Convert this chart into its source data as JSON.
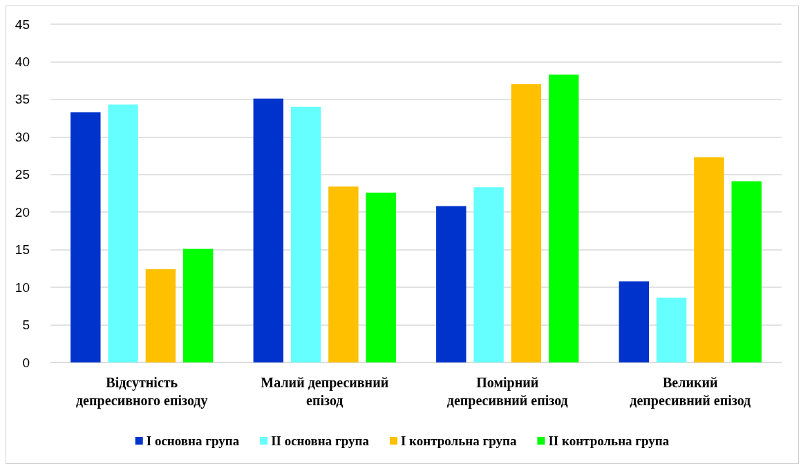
{
  "chart_data": {
    "type": "bar",
    "categories": [
      "Відсутність\nдепресивного епізоду",
      "Малий депресивний\nепізод",
      "Помірний\nдепресивний епізод",
      "Великий\nдепресивний епізод"
    ],
    "series": [
      {
        "name": "I основна група",
        "color": "#0033cc",
        "values": [
          33.3,
          35.1,
          20.8,
          10.8
        ]
      },
      {
        "name": "II основна група",
        "color": "#66ffff",
        "values": [
          34.3,
          34.0,
          23.3,
          8.6
        ]
      },
      {
        "name": "I контрольна група",
        "color": "#ffc000",
        "values": [
          12.4,
          23.4,
          37.0,
          27.3
        ]
      },
      {
        "name": "II контрольна група",
        "color": "#00ff00",
        "values": [
          15.1,
          22.6,
          38.3,
          24.1
        ]
      }
    ],
    "ylim": [
      0,
      45
    ],
    "yticks": [
      0,
      5,
      10,
      15,
      20,
      25,
      30,
      35,
      40,
      45
    ],
    "grid": "y",
    "legend": "bottom"
  }
}
